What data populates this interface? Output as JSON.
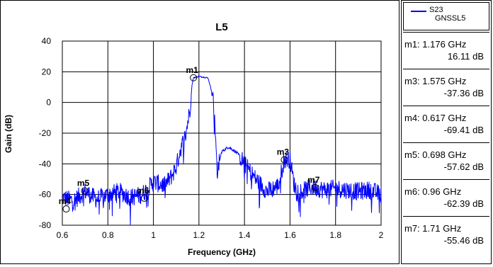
{
  "chart_data": {
    "type": "line",
    "title": "L5",
    "xlabel": "Frequency (GHz)",
    "ylabel": "Gain (dB)",
    "xlim": [
      0.6,
      2.0
    ],
    "ylim": [
      -80,
      40
    ],
    "grid": true,
    "xticks": [
      "0.6",
      "0.8",
      "1",
      "1.2",
      "1.4",
      "1.6",
      "1.8",
      "2"
    ],
    "yticks": [
      "40",
      "20",
      "0",
      "-20",
      "-40",
      "-60",
      "-80"
    ],
    "series": [
      {
        "name": "S23 GNSSL5",
        "color": "#0000ff",
        "x": [
          0.6,
          0.65,
          0.7,
          0.75,
          0.8,
          0.85,
          0.9,
          0.95,
          1.0,
          1.05,
          1.08,
          1.1,
          1.12,
          1.14,
          1.16,
          1.17,
          1.176,
          1.2,
          1.24,
          1.26,
          1.27,
          1.28,
          1.3,
          1.33,
          1.36,
          1.38,
          1.4,
          1.42,
          1.45,
          1.5,
          1.55,
          1.57,
          1.575,
          1.6,
          1.62,
          1.65,
          1.7,
          1.75,
          1.8,
          1.85,
          1.9,
          1.95,
          2.0
        ],
        "y": [
          -62,
          -64,
          -58,
          -63,
          -60,
          -58,
          -62,
          -60,
          -52,
          -54,
          -48,
          -42,
          -30,
          -22,
          -5,
          12,
          16.11,
          17,
          16,
          5,
          -15,
          -45,
          -32,
          -29,
          -32,
          -35,
          -40,
          -44,
          -50,
          -58,
          -54,
          -40,
          -37.36,
          -37,
          -55,
          -58,
          -55,
          -57,
          -56,
          -57,
          -58,
          -57,
          -60
        ]
      }
    ],
    "markers": [
      {
        "label": "m1",
        "x": 1.176,
        "y": 16.11
      },
      {
        "label": "m3",
        "x": 1.575,
        "y": -37.36
      },
      {
        "label": "m4",
        "x": 0.617,
        "y": -69.41
      },
      {
        "label": "m5",
        "x": 0.698,
        "y": -57.62
      },
      {
        "label": "m6",
        "x": 0.96,
        "y": -62.39
      },
      {
        "label": "m7",
        "x": 1.71,
        "y": -55.46
      }
    ]
  },
  "legend": {
    "label": "S23\nGNSSL5"
  },
  "marker_readouts": [
    {
      "line1": "m1: 1.176 GHz",
      "line2": "16.11 dB"
    },
    {
      "line1": "m3: 1.575 GHz",
      "line2": "-37.36 dB"
    },
    {
      "line1": "m4: 0.617 GHz",
      "line2": "-69.41 dB"
    },
    {
      "line1": "m5: 0.698 GHz",
      "line2": "-57.62 dB"
    },
    {
      "line1": "m6: 0.96 GHz",
      "line2": "-62.39 dB"
    },
    {
      "line1": "m7: 1.71 GHz",
      "line2": "-55.46 dB"
    }
  ]
}
